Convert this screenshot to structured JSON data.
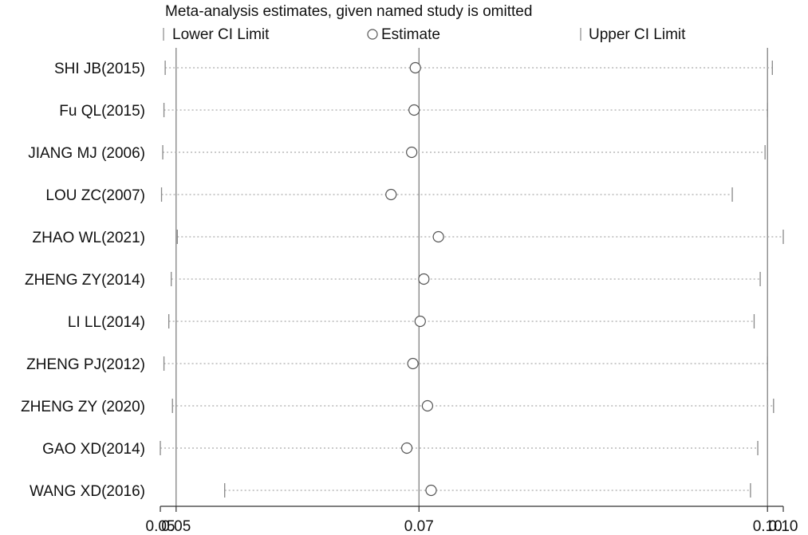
{
  "chart_data": {
    "type": "scatter",
    "title": "Meta-analysis estimates, given named study is omitted",
    "legend": {
      "lower": "Lower CI Limit",
      "estimate": "Estimate",
      "upper": "Upper CI Limit",
      "placement": "top"
    },
    "xlim": [
      0.0487,
      0.1
    ],
    "ticks": [
      {
        "value": 0.0487,
        "label": "0.05"
      },
      {
        "value": 0.05,
        "label": "0.05"
      },
      {
        "value": 0.07,
        "label": "0.07"
      },
      {
        "value": 0.0987,
        "label": "0.10"
      },
      {
        "value": 0.1,
        "label": "0.10"
      }
    ],
    "reference_lines": [
      0.05,
      0.07,
      0.0987
    ],
    "studies": [
      {
        "name": "SHI JB(2015)",
        "lower": 0.0491,
        "estimate": 0.0697,
        "upper": 0.0991
      },
      {
        "name": "Fu QL(2015)",
        "lower": 0.049,
        "estimate": 0.0696,
        "upper": 0.0987
      },
      {
        "name": "JIANG MJ (2006)",
        "lower": 0.0489,
        "estimate": 0.0694,
        "upper": 0.0985
      },
      {
        "name": "LOU ZC(2007)",
        "lower": 0.0488,
        "estimate": 0.0677,
        "upper": 0.0958
      },
      {
        "name": "ZHAO WL(2021)",
        "lower": 0.0501,
        "estimate": 0.0716,
        "upper": 0.1
      },
      {
        "name": "ZHENG ZY(2014)",
        "lower": 0.0496,
        "estimate": 0.0704,
        "upper": 0.0981
      },
      {
        "name": "LI LL(2014)",
        "lower": 0.0494,
        "estimate": 0.0701,
        "upper": 0.0976
      },
      {
        "name": "ZHENG PJ(2012)",
        "lower": 0.049,
        "estimate": 0.0695,
        "upper": 0.0987
      },
      {
        "name": "ZHENG ZY (2020)",
        "lower": 0.0497,
        "estimate": 0.0707,
        "upper": 0.0992
      },
      {
        "name": "GAO XD(2014)",
        "lower": 0.0487,
        "estimate": 0.069,
        "upper": 0.0979
      },
      {
        "name": "WANG XD(2016)",
        "lower": 0.054,
        "estimate": 0.071,
        "upper": 0.0973
      }
    ]
  }
}
